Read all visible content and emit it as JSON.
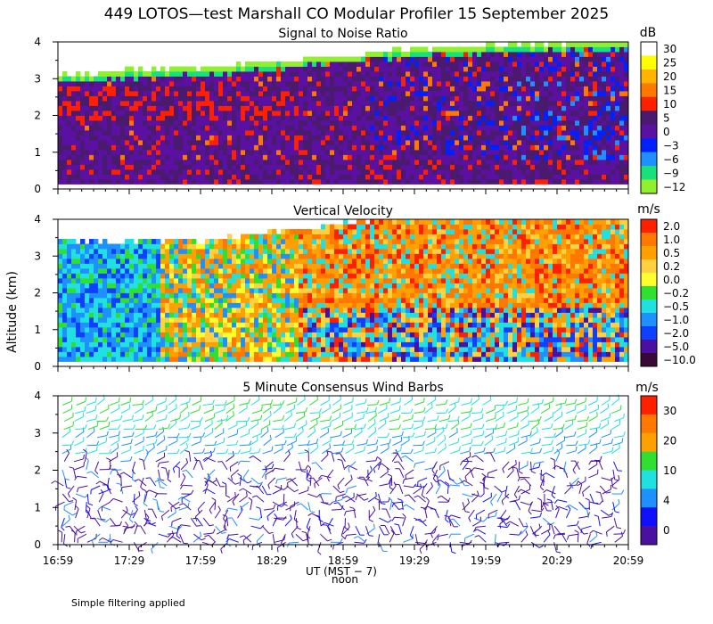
{
  "figure_title": "449 LOTOS—test Marshall CO Modular Profiler 15 September 2025",
  "footer_note": "Simple filtering applied",
  "shared_axes": {
    "ylabel": "Altitude (km)",
    "y_ticks": [
      "0",
      "1",
      "2",
      "3",
      "4"
    ],
    "ylim": [
      0,
      4
    ],
    "x_ticks": [
      "16:59",
      "17:29",
      "17:59",
      "18:29",
      "18:59",
      "19:29",
      "19:59",
      "20:29",
      "20:59"
    ],
    "x_tick_hours": [
      16.983,
      17.483,
      17.983,
      18.483,
      18.983,
      19.483,
      19.983,
      20.483,
      20.983
    ],
    "xlim_hours": [
      16.983,
      20.983
    ],
    "xlabel": "UT  (MST − 7)",
    "noon_label": "noon"
  },
  "chart_data": [
    {
      "type": "heatmap",
      "title": "Signal to Noise Ratio",
      "colorbar_unit": "dB",
      "colorbar_labels": [
        "30",
        "25",
        "20",
        "15",
        "10",
        "5",
        "0",
        "−3",
        "−6",
        "−9",
        "−12"
      ],
      "colorbar_colors": [
        "#ffffff",
        "#ffff00",
        "#ffb400",
        "#ff7800",
        "#ff2000",
        "#4a1a6e",
        "#5a10a0",
        "#0020ff",
        "#1e90ff",
        "#18e07a",
        "#90f030"
      ],
      "description_values": {
        "top_boundary_km": [
          3.1,
          3.25,
          3.35,
          3.55,
          3.75,
          3.9,
          3.95,
          4.0
        ],
        "levels_db": [
          30,
          25,
          20,
          15,
          10,
          5,
          0,
          -3,
          -6,
          -9,
          -12
        ]
      }
    },
    {
      "type": "heatmap",
      "title": "Vertical Velocity",
      "colorbar_unit": "m/s",
      "colorbar_labels": [
        "2.0",
        "1.0",
        "0.5",
        "0.2",
        "0.0",
        "−0.2",
        "−0.5",
        "−1.0",
        "−2.0",
        "−5.0",
        "−10.0"
      ],
      "colorbar_colors": [
        "#ff2000",
        "#ff7800",
        "#ffa000",
        "#ffd040",
        "#ffff30",
        "#30e030",
        "#20e0e0",
        "#1e90ff",
        "#1040ff",
        "#4a10a0",
        "#3a0838"
      ],
      "description_values": {
        "top_boundary_km": [
          3.4,
          3.4,
          3.45,
          3.8,
          4.0,
          4.0,
          4.0,
          4.0
        ],
        "levels_ms": [
          2.0,
          1.0,
          0.5,
          0.2,
          0.0,
          -0.2,
          -0.5,
          -1.0,
          -2.0,
          -5.0,
          -10.0
        ]
      }
    },
    {
      "type": "scatter",
      "title": "5 Minute Consensus Wind Barbs",
      "colorbar_unit": "m/s",
      "colorbar_labels": [
        "30",
        "20",
        "10",
        "4",
        "0"
      ],
      "colorbar_colors": [
        "#ff2000",
        "#ff7800",
        "#ffa000",
        "#30e030",
        "#20e0e0",
        "#1e90ff",
        "#1010ff",
        "#4a10a0"
      ],
      "description_values": {
        "time_step_minutes": 5,
        "max_altitude_km": 4.0,
        "speed_levels_ms": [
          0,
          4,
          10,
          20,
          30
        ]
      }
    }
  ]
}
